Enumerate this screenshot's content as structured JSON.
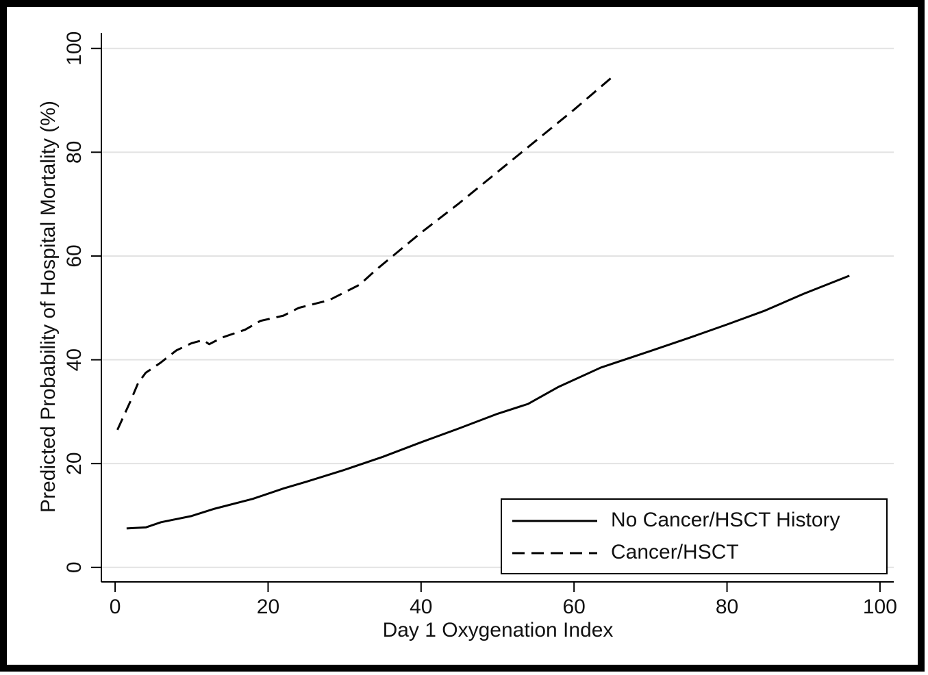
{
  "chart_data": {
    "type": "line",
    "x_label": "Day 1 Oxygenation Index",
    "y_label": "Predicted Probability of Hospital Mortality (%)",
    "xlim": [
      -1.8,
      101.8
    ],
    "ylim": [
      -2.8,
      103
    ],
    "xticks": [
      0,
      20,
      40,
      60,
      80,
      100
    ],
    "yticks": [
      0,
      20,
      40,
      60,
      80,
      100
    ],
    "grid": true,
    "legend": "bottom-right",
    "series": [
      {
        "name": "No Cancer/HSCT History",
        "color": "#000000",
        "dash": "solid",
        "x": [
          1.5,
          4,
          6,
          10,
          13,
          18,
          22,
          25,
          30,
          35,
          40,
          45,
          50,
          54,
          58,
          63.5,
          70,
          75,
          80,
          85,
          90,
          96
        ],
        "values": [
          7.5,
          7.7,
          8.7,
          9.9,
          11.3,
          13.2,
          15.2,
          16.5,
          18.8,
          21.3,
          24.1,
          26.8,
          29.6,
          31.5,
          34.8,
          38.5,
          41.7,
          44.2,
          46.8,
          49.5,
          52.7,
          56.2
        ]
      },
      {
        "name": "Cancer/HSCT",
        "color": "#000000",
        "dash": "dashed",
        "x": [
          0.3,
          2,
          3,
          4,
          6,
          8,
          10,
          11.5,
          12.3,
          14,
          17,
          19,
          22,
          24,
          28,
          32,
          34,
          40,
          45,
          50,
          55,
          60,
          65
        ],
        "values": [
          26.5,
          32,
          35.5,
          37.5,
          39.5,
          41.8,
          43.2,
          43.8,
          43,
          44.3,
          45.8,
          47.5,
          48.5,
          50,
          51.5,
          54.5,
          57.2,
          64.5,
          70.2,
          76.2,
          82.2,
          88.2,
          94.5
        ]
      }
    ]
  }
}
